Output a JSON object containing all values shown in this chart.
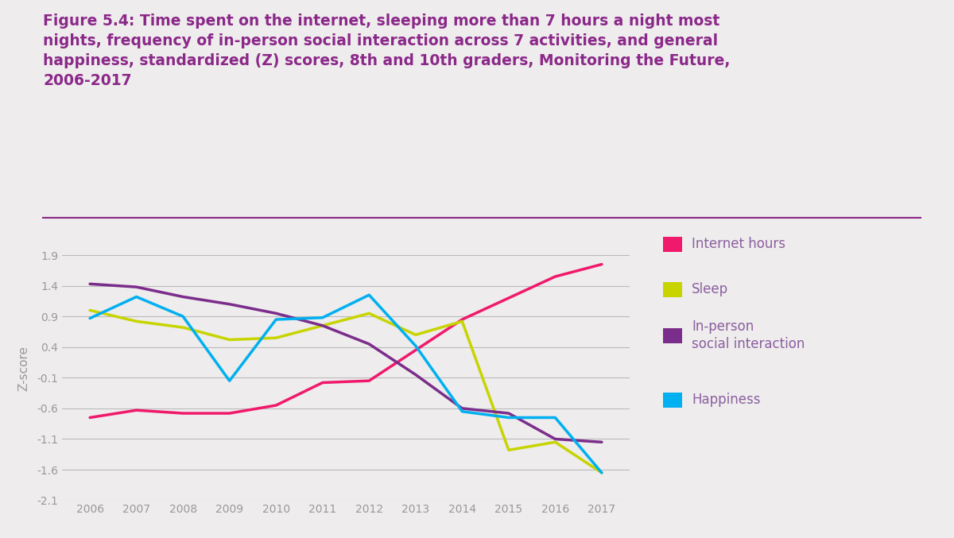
{
  "years": [
    2006,
    2007,
    2008,
    2009,
    2010,
    2011,
    2012,
    2013,
    2014,
    2015,
    2016,
    2017
  ],
  "internet_hours": [
    -0.75,
    -0.63,
    -0.68,
    -0.68,
    -0.55,
    -0.18,
    -0.15,
    0.35,
    0.85,
    1.2,
    1.55,
    1.75
  ],
  "sleep": [
    1.0,
    0.82,
    0.72,
    0.52,
    0.55,
    0.75,
    0.95,
    0.6,
    0.82,
    -1.28,
    -1.15,
    -1.65
  ],
  "in_person": [
    1.43,
    1.38,
    1.22,
    1.1,
    0.95,
    0.75,
    0.45,
    -0.05,
    -0.6,
    -0.68,
    -1.1,
    -1.15
  ],
  "happiness": [
    0.87,
    1.22,
    0.9,
    -0.15,
    0.85,
    0.88,
    1.25,
    0.42,
    -0.65,
    -0.75,
    -0.75,
    -1.65
  ],
  "internet_color": "#f0196b",
  "sleep_color": "#c8d400",
  "in_person_color": "#7b2d8b",
  "happiness_color": "#00b0f0",
  "bg_color": "#eeecec",
  "title_line1": "Figure 5.4: Time spent on the internet, sleeping more than 7 hours a night most",
  "title_line2": "nights, frequency of in-person social interaction across 7 activities, and general",
  "title_line3": "happiness, standardized (Z) scores, 8th and 10th graders, Monitoring the Future,",
  "title_line4": "2006-2017",
  "title_color": "#8b2889",
  "ylabel": "Z-score",
  "ylim": [
    -2.1,
    2.2
  ],
  "yticks": [
    -2.1,
    -1.6,
    -1.1,
    -0.6,
    -0.1,
    0.4,
    0.9,
    1.4,
    1.9
  ],
  "line_width": 2.5,
  "separator_color": "#8b2889",
  "legend_labels": [
    "Internet hours",
    "Sleep",
    "In-person\nsocial interaction",
    "Happiness"
  ],
  "legend_colors": [
    "#f0196b",
    "#c8d400",
    "#7b2d8b",
    "#00b0f0"
  ],
  "grid_color": "#bbbbbb",
  "tick_color": "#999999",
  "legend_text_color": "#8b5fa0"
}
